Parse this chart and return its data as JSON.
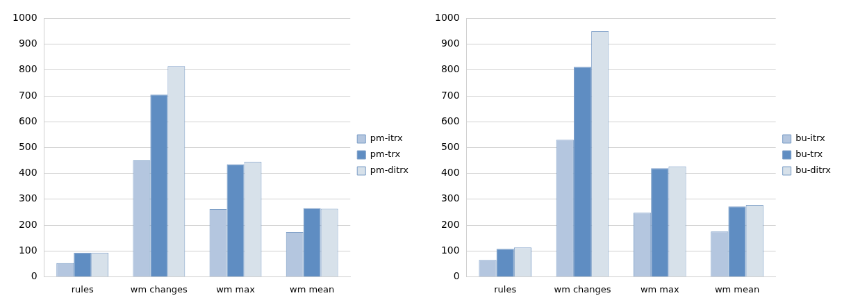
{
  "chart_data": [
    {
      "type": "bar",
      "categories": [
        "rules",
        "wm changes",
        "wm max",
        "wm mean"
      ],
      "series": [
        {
          "name": "pm-itrx",
          "color": "#b4c6df",
          "values": [
            53,
            450,
            262,
            173
          ]
        },
        {
          "name": "pm-trx",
          "color": "#5f8dc2",
          "values": [
            93,
            705,
            435,
            265
          ]
        },
        {
          "name": "pm-ditrx",
          "color": "#d7e1ea",
          "values": [
            93,
            815,
            445,
            263
          ]
        }
      ],
      "ylim": [
        0,
        1000
      ],
      "yticks": [
        0,
        100,
        200,
        300,
        400,
        500,
        600,
        700,
        800,
        900,
        1000
      ],
      "grid": "y",
      "legend": "right"
    },
    {
      "type": "bar",
      "categories": [
        "rules",
        "wm changes",
        "wm max",
        "wm mean"
      ],
      "series": [
        {
          "name": "bu-itrx",
          "color": "#b4c6df",
          "values": [
            65,
            530,
            248,
            175
          ]
        },
        {
          "name": "bu-trx",
          "color": "#5f8dc2",
          "values": [
            108,
            812,
            420,
            272
          ]
        },
        {
          "name": "bu-ditrx",
          "color": "#d7e1ea",
          "values": [
            113,
            950,
            427,
            278
          ]
        }
      ],
      "ylim": [
        0,
        1000
      ],
      "yticks": [
        0,
        100,
        200,
        300,
        400,
        500,
        600,
        700,
        800,
        900,
        1000
      ],
      "grid": "y",
      "legend": "right"
    }
  ]
}
